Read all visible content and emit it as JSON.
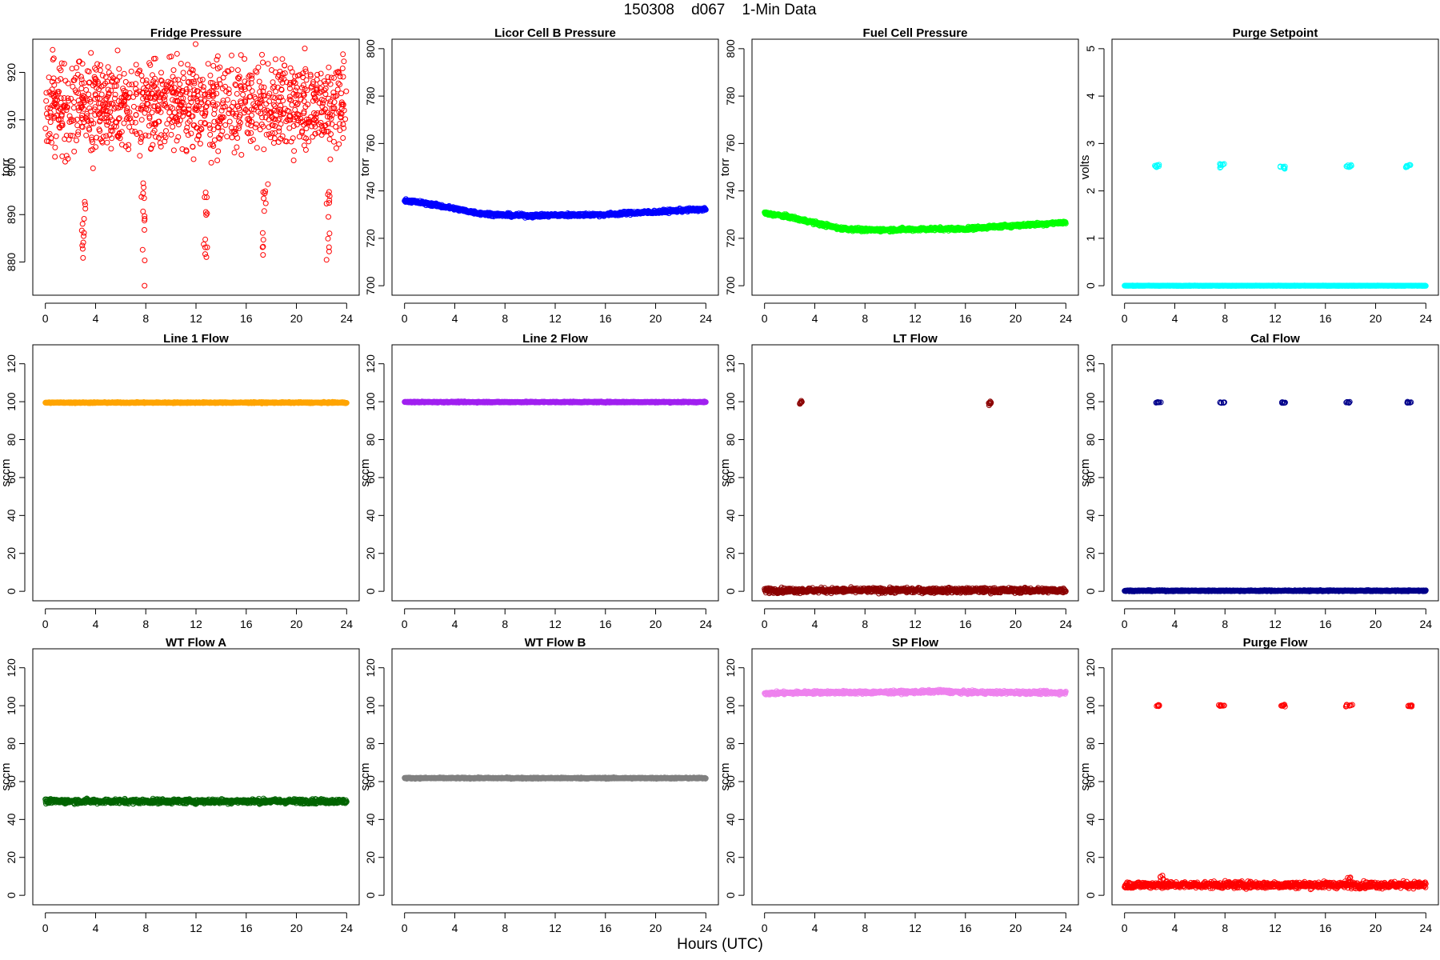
{
  "page": {
    "title": "150308    d067    1-Min Data",
    "xlabel": "Hours (UTC)"
  },
  "chart_data": [
    {
      "type": "scatter",
      "title": "Fridge Pressure",
      "ylabel": "torr",
      "color": "#ff0000",
      "xlim": [
        -1,
        25
      ],
      "ylim": [
        873,
        927
      ],
      "xticks": [
        0,
        4,
        8,
        12,
        16,
        20,
        24
      ],
      "yticks": [
        880,
        890,
        900,
        910,
        920
      ],
      "gen": "fridge"
    },
    {
      "type": "scatter",
      "title": "Licor Cell B Pressure",
      "ylabel": "torr",
      "color": "#0000ff",
      "xlim": [
        -1,
        25
      ],
      "ylim": [
        696,
        804
      ],
      "xticks": [
        0,
        4,
        8,
        12,
        16,
        20,
        24
      ],
      "yticks": [
        700,
        720,
        740,
        760,
        780,
        800
      ],
      "gen": "curve",
      "curve": [
        [
          0,
          736
        ],
        [
          2,
          734.5
        ],
        [
          4,
          732.5
        ],
        [
          6,
          730.5
        ],
        [
          8,
          729.8
        ],
        [
          10,
          729.5
        ],
        [
          12,
          729.8
        ],
        [
          14,
          729.9
        ],
        [
          16,
          730
        ],
        [
          18,
          730.7
        ],
        [
          20,
          731.1
        ],
        [
          22,
          731.8
        ],
        [
          24,
          732.3
        ]
      ]
    },
    {
      "type": "scatter",
      "title": "Fuel Cell Pressure",
      "ylabel": "torr",
      "color": "#00ff00",
      "xlim": [
        -1,
        25
      ],
      "ylim": [
        696,
        804
      ],
      "xticks": [
        0,
        4,
        8,
        12,
        16,
        20,
        24
      ],
      "yticks": [
        700,
        720,
        740,
        760,
        780,
        800
      ],
      "gen": "curve",
      "curve": [
        [
          0,
          730.6
        ],
        [
          2,
          729
        ],
        [
          4,
          726.5
        ],
        [
          6,
          724.2
        ],
        [
          8,
          723.5
        ],
        [
          10,
          723.6
        ],
        [
          12,
          723.8
        ],
        [
          14,
          724
        ],
        [
          16,
          724
        ],
        [
          18,
          724.8
        ],
        [
          20,
          725.4
        ],
        [
          22,
          726
        ],
        [
          24,
          726.8
        ]
      ]
    },
    {
      "type": "scatter",
      "title": "Purge Setpoint",
      "ylabel": "volts",
      "color": "#00ffff",
      "xlim": [
        -1,
        25
      ],
      "ylim": [
        -0.2,
        5.2
      ],
      "xticks": [
        0,
        4,
        8,
        12,
        16,
        20,
        24
      ],
      "yticks": [
        0,
        1,
        2,
        3,
        4,
        5
      ],
      "gen": "events",
      "base": 0,
      "spread": 0.005,
      "events": [
        [
          2.4,
          2.8,
          2.52
        ],
        [
          7.4,
          8.0,
          2.53
        ],
        [
          12.4,
          12.8,
          2.51
        ],
        [
          17.6,
          18.2,
          2.53
        ],
        [
          22.4,
          22.8,
          2.52
        ]
      ],
      "eventspread": 0.05
    },
    {
      "type": "scatter",
      "title": "Line 1 Flow",
      "ylabel": "sccm",
      "color": "#ffa500",
      "xlim": [
        -1,
        25
      ],
      "ylim": [
        -5,
        130
      ],
      "xticks": [
        0,
        4,
        8,
        12,
        16,
        20,
        24
      ],
      "yticks": [
        0,
        20,
        40,
        60,
        80,
        100,
        120
      ],
      "gen": "flat",
      "base": 99.5,
      "spread": 0.3
    },
    {
      "type": "scatter",
      "title": "Line 2 Flow",
      "ylabel": "sccm",
      "color": "#a020f0",
      "xlim": [
        -1,
        25
      ],
      "ylim": [
        -5,
        130
      ],
      "xticks": [
        0,
        4,
        8,
        12,
        16,
        20,
        24
      ],
      "yticks": [
        0,
        20,
        40,
        60,
        80,
        100,
        120
      ],
      "gen": "flat",
      "base": 99.8,
      "spread": 0.3
    },
    {
      "type": "scatter",
      "title": "LT Flow",
      "ylabel": "sccm",
      "color": "#8b0000",
      "xlim": [
        -1,
        25
      ],
      "ylim": [
        -5,
        130
      ],
      "xticks": [
        0,
        4,
        8,
        12,
        16,
        20,
        24
      ],
      "yticks": [
        0,
        20,
        40,
        60,
        80,
        100,
        120
      ],
      "gen": "events",
      "base": 0.5,
      "spread": 1.3,
      "events": [
        [
          2.8,
          3.1,
          99.5
        ],
        [
          17.8,
          18.1,
          99.5
        ]
      ],
      "eventspread": 1.4
    },
    {
      "type": "scatter",
      "title": "Cal Flow",
      "ylabel": "sccm",
      "color": "#00008b",
      "xlim": [
        -1,
        25
      ],
      "ylim": [
        -5,
        130
      ],
      "xticks": [
        0,
        4,
        8,
        12,
        16,
        20,
        24
      ],
      "yticks": [
        0,
        20,
        40,
        60,
        80,
        100,
        120
      ],
      "gen": "events",
      "base": 0.3,
      "spread": 0.3,
      "events": [
        [
          2.5,
          2.9,
          99.6
        ],
        [
          7.6,
          8.1,
          99.6
        ],
        [
          12.5,
          12.8,
          99.6
        ],
        [
          17.6,
          18.2,
          99.6
        ],
        [
          22.5,
          22.9,
          99.6
        ]
      ],
      "eventspread": 0.3
    },
    {
      "type": "scatter",
      "title": "WT Flow A",
      "ylabel": "sccm",
      "color": "#006400",
      "xlim": [
        -1,
        25
      ],
      "ylim": [
        -5,
        130
      ],
      "xticks": [
        0,
        4,
        8,
        12,
        16,
        20,
        24
      ],
      "yticks": [
        0,
        20,
        40,
        60,
        80,
        100,
        120
      ],
      "gen": "flat",
      "base": 49.6,
      "spread": 1.2
    },
    {
      "type": "scatter",
      "title": "WT Flow B",
      "ylabel": "sccm",
      "color": "#808080",
      "xlim": [
        -1,
        25
      ],
      "ylim": [
        -5,
        130
      ],
      "xticks": [
        0,
        4,
        8,
        12,
        16,
        20,
        24
      ],
      "yticks": [
        0,
        20,
        40,
        60,
        80,
        100,
        120
      ],
      "gen": "flat",
      "base": 61.8,
      "spread": 0.35
    },
    {
      "type": "scatter",
      "title": "SP Flow",
      "ylabel": "sccm",
      "color": "#ee82ee",
      "xlim": [
        -1,
        25
      ],
      "ylim": [
        -5,
        130
      ],
      "xticks": [
        0,
        4,
        8,
        12,
        16,
        20,
        24
      ],
      "yticks": [
        0,
        20,
        40,
        60,
        80,
        100,
        120
      ],
      "gen": "curve",
      "curve": [
        [
          0,
          106.5
        ],
        [
          4,
          107
        ],
        [
          8,
          107
        ],
        [
          12,
          107.2
        ],
        [
          14,
          107.6
        ],
        [
          16,
          107
        ],
        [
          20,
          107
        ],
        [
          24,
          106.8
        ]
      ],
      "spread": 0.4
    },
    {
      "type": "scatter",
      "title": "Purge Flow",
      "ylabel": "sccm",
      "color": "#ff0000",
      "xlim": [
        -1,
        25
      ],
      "ylim": [
        -5,
        130
      ],
      "xticks": [
        0,
        4,
        8,
        12,
        16,
        20,
        24
      ],
      "yticks": [
        0,
        20,
        40,
        60,
        80,
        100,
        120
      ],
      "gen": "events",
      "base": 5.5,
      "spread": 1.7,
      "events": [
        [
          2.5,
          2.9,
          100
        ],
        [
          7.5,
          8.1,
          100
        ],
        [
          12.4,
          12.8,
          99.8
        ],
        [
          17.6,
          18.2,
          100
        ],
        [
          22.5,
          22.9,
          100
        ]
      ],
      "eventspread": 0.6,
      "bumps": [
        [
          3.0,
          10.5
        ],
        [
          17.9,
          10.5
        ]
      ]
    }
  ]
}
